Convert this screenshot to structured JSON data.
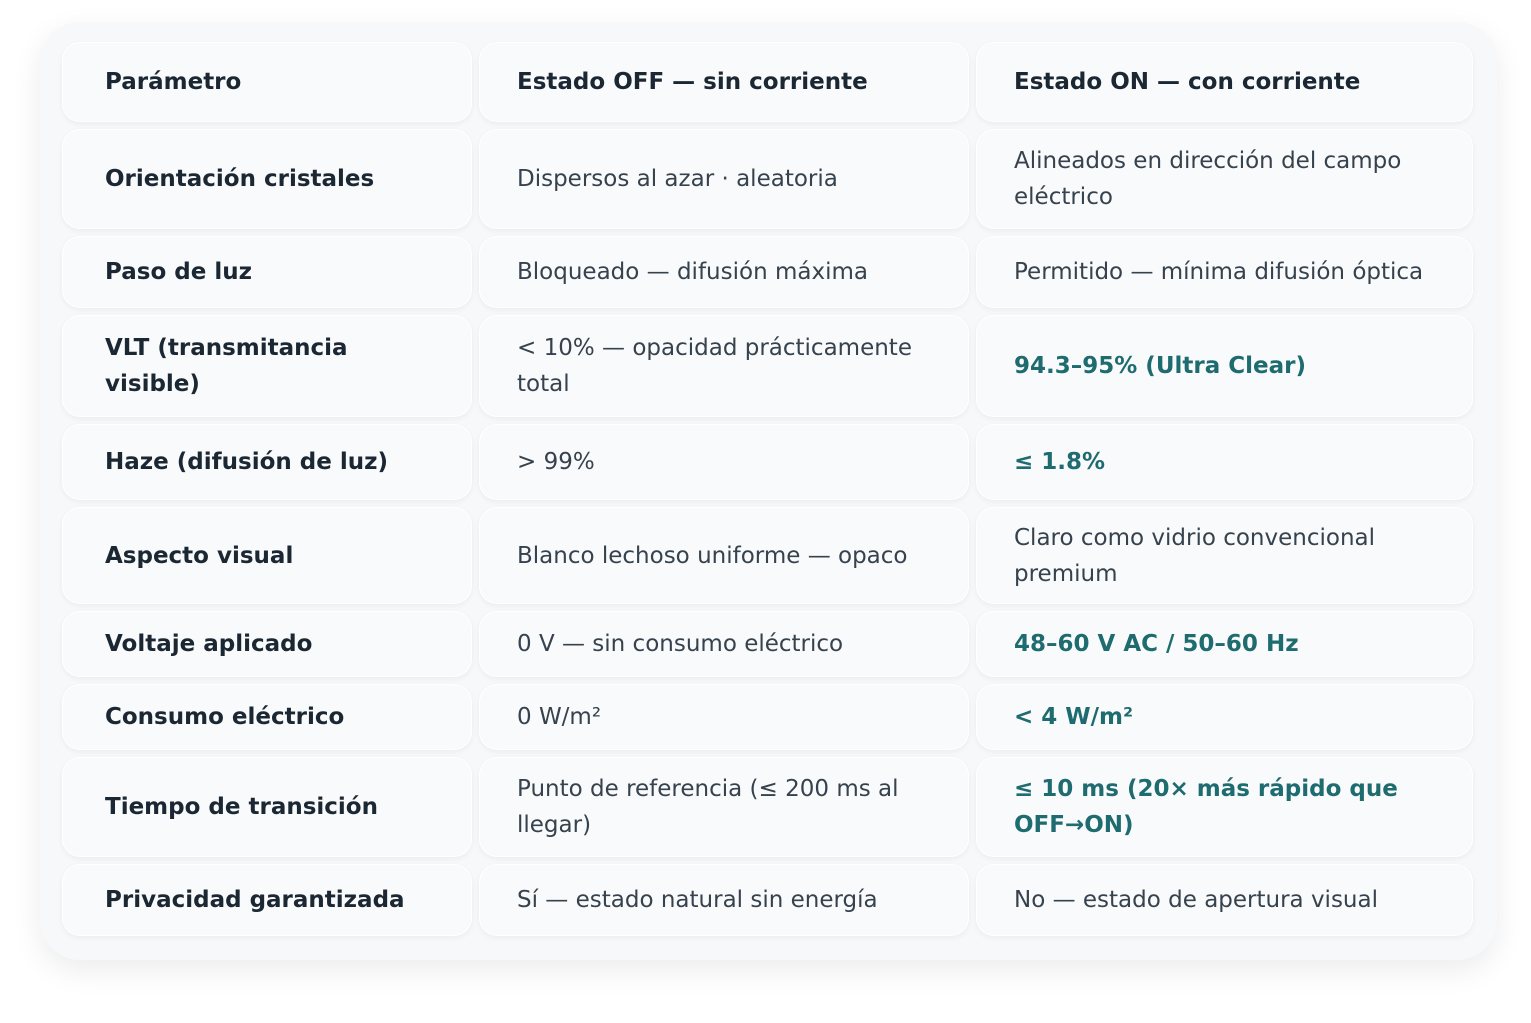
{
  "table": {
    "headers": [
      "Parámetro",
      "Estado OFF — sin corriente",
      "Estado ON — con corriente"
    ],
    "rows": [
      [
        "Orientación cristales",
        "Dispersos al azar · aleatoria",
        "Alineados en dirección del campo eléctrico"
      ],
      [
        "Paso de luz",
        "Bloqueado — difusión máxima",
        "Permitido — mínima difusión óptica"
      ],
      [
        "VLT (transmitancia visible)",
        "< 10% — opacidad prácticamente total",
        "94.3–95% (Ultra Clear)"
      ],
      [
        "Haze (difusión de luz)",
        "> 99%",
        "≤ 1.8%"
      ],
      [
        "Aspecto visual",
        "Blanco lechoso uniforme — opaco",
        "Claro como vidrio convencional premium"
      ],
      [
        "Voltaje aplicado",
        "0 V — sin consumo eléctrico",
        "48–60 V AC / 50–60 Hz"
      ],
      [
        "Consumo eléctrico",
        "0 W/m²",
        "< 4 W/m²"
      ],
      [
        "Tiempo de transición",
        "Punto de referencia (≤ 200 ms al llegar)",
        "≤ 10 ms (20× más rápido que OFF→ON)"
      ],
      [
        "Privacidad garantizada",
        "Sí — estado natural sin energía",
        "No — estado de apertura visual"
      ]
    ]
  }
}
